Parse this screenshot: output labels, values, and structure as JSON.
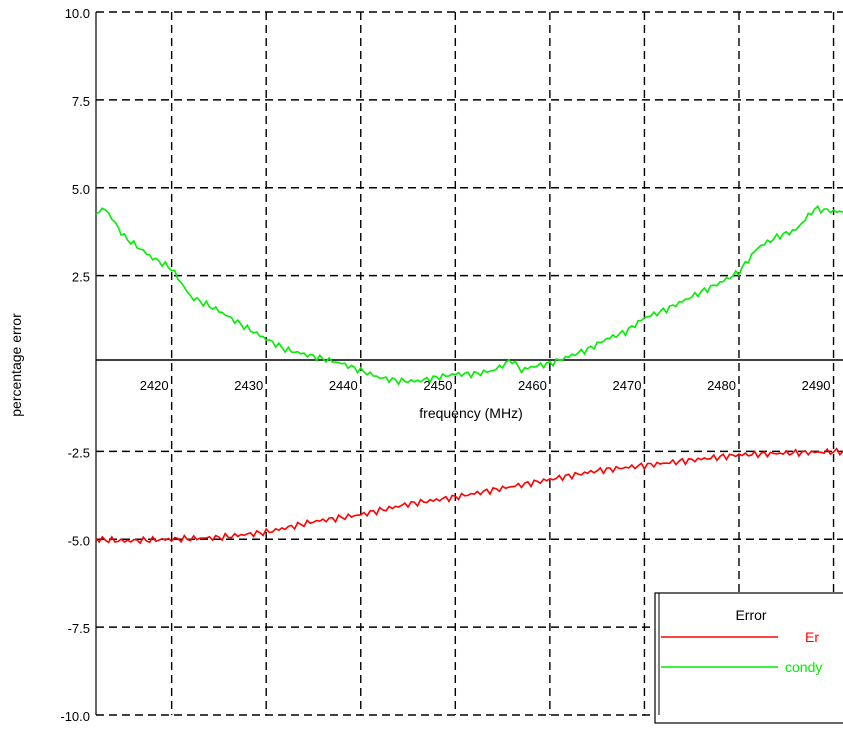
{
  "chart_data": {
    "type": "line",
    "title": "",
    "xlabel": "frequency (MHz)",
    "ylabel": "percentage error",
    "xlim": [
      2412,
      2491
    ],
    "ylim": [
      -10,
      10
    ],
    "x_ticks": [
      "2420",
      "2430",
      "2440",
      "2450",
      "2460",
      "2470",
      "2480",
      "2490"
    ],
    "y_ticks": [
      "10.0",
      "7.5",
      "5.0",
      "2.5",
      "-2.5",
      "-5.0",
      "-7.5",
      "-10.0"
    ],
    "grid": true,
    "legend": {
      "title": "Error",
      "position": "bottom-right"
    },
    "series": [
      {
        "name": "Er",
        "color": "#ff0000",
        "x": [
          2412,
          2415,
          2420,
          2425,
          2430,
          2435,
          2440,
          2445,
          2450,
          2455,
          2460,
          2465,
          2470,
          2475,
          2480,
          2485,
          2491
        ],
        "y": [
          -5.0,
          -5.05,
          -5.0,
          -4.95,
          -4.8,
          -4.5,
          -4.3,
          -4.0,
          -3.8,
          -3.55,
          -3.3,
          -3.05,
          -2.9,
          -2.75,
          -2.6,
          -2.55,
          -2.5
        ]
      },
      {
        "name": "condy",
        "color": "#00ee00",
        "x": [
          2412,
          2413,
          2415,
          2418,
          2420,
          2422,
          2425,
          2428,
          2430,
          2432,
          2435,
          2438,
          2440,
          2442,
          2444,
          2446,
          2448,
          2450,
          2452,
          2454,
          2456,
          2457,
          2458,
          2460,
          2462,
          2464,
          2466,
          2468,
          2470,
          2472,
          2475,
          2478,
          2480,
          2482,
          2484,
          2486,
          2488,
          2491
        ],
        "y": [
          4.3,
          4.4,
          3.6,
          3.0,
          2.7,
          1.9,
          1.5,
          1.0,
          0.7,
          0.4,
          0.2,
          0.0,
          -0.2,
          -0.4,
          -0.5,
          -0.5,
          -0.4,
          -0.3,
          -0.3,
          -0.2,
          0.1,
          -0.2,
          -0.1,
          0.0,
          0.2,
          0.4,
          0.7,
          0.9,
          1.3,
          1.5,
          1.9,
          2.3,
          2.6,
          3.3,
          3.6,
          3.8,
          4.4,
          4.3
        ]
      }
    ]
  }
}
